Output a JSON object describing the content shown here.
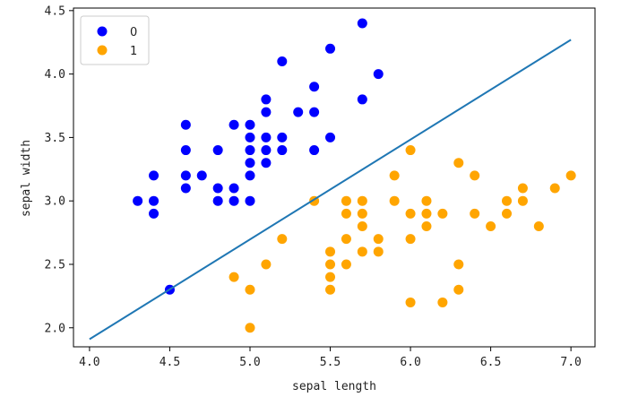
{
  "chart_data": {
    "type": "scatter",
    "xlabel": "sepal length",
    "ylabel": "sepal width",
    "xlim": [
      3.9,
      7.15
    ],
    "ylim": [
      1.85,
      4.52
    ],
    "xticks": [
      4.0,
      4.5,
      5.0,
      5.5,
      6.0,
      6.5,
      7.0
    ],
    "yticks": [
      2.0,
      2.5,
      3.0,
      3.5,
      4.0,
      4.5
    ],
    "legend_position": "upper-left",
    "series": [
      {
        "name": "0",
        "color": "#0000ff",
        "points": [
          [
            5.7,
            4.4
          ],
          [
            5.5,
            4.2
          ],
          [
            5.2,
            4.1
          ],
          [
            5.8,
            4.0
          ],
          [
            5.4,
            3.9
          ],
          [
            5.1,
            3.8
          ],
          [
            5.7,
            3.8
          ],
          [
            5.1,
            3.7
          ],
          [
            5.3,
            3.7
          ],
          [
            5.4,
            3.7
          ],
          [
            4.6,
            3.6
          ],
          [
            4.9,
            3.6
          ],
          [
            5.0,
            3.6
          ],
          [
            5.0,
            3.5
          ],
          [
            5.1,
            3.5
          ],
          [
            5.2,
            3.5
          ],
          [
            5.5,
            3.5
          ],
          [
            4.6,
            3.4
          ],
          [
            4.8,
            3.4
          ],
          [
            5.0,
            3.4
          ],
          [
            5.1,
            3.4
          ],
          [
            5.2,
            3.4
          ],
          [
            5.4,
            3.4
          ],
          [
            5.0,
            3.3
          ],
          [
            5.1,
            3.3
          ],
          [
            4.4,
            3.2
          ],
          [
            4.6,
            3.2
          ],
          [
            4.7,
            3.2
          ],
          [
            5.0,
            3.2
          ],
          [
            4.6,
            3.1
          ],
          [
            4.8,
            3.1
          ],
          [
            4.9,
            3.1
          ],
          [
            4.3,
            3.0
          ],
          [
            4.4,
            3.0
          ],
          [
            4.8,
            3.0
          ],
          [
            4.9,
            3.0
          ],
          [
            5.0,
            3.0
          ],
          [
            4.4,
            2.9
          ],
          [
            4.5,
            2.3
          ]
        ]
      },
      {
        "name": "1",
        "color": "#ffa500",
        "points": [
          [
            6.0,
            3.4
          ],
          [
            6.3,
            3.3
          ],
          [
            5.9,
            3.2
          ],
          [
            6.4,
            3.2
          ],
          [
            7.0,
            3.2
          ],
          [
            6.7,
            3.1
          ],
          [
            6.9,
            3.1
          ],
          [
            5.4,
            3.0
          ],
          [
            5.6,
            3.0
          ],
          [
            5.7,
            3.0
          ],
          [
            5.9,
            3.0
          ],
          [
            6.1,
            3.0
          ],
          [
            6.6,
            3.0
          ],
          [
            6.7,
            3.0
          ],
          [
            5.6,
            2.9
          ],
          [
            5.7,
            2.9
          ],
          [
            6.0,
            2.9
          ],
          [
            6.1,
            2.9
          ],
          [
            6.2,
            2.9
          ],
          [
            6.4,
            2.9
          ],
          [
            6.6,
            2.9
          ],
          [
            5.7,
            2.8
          ],
          [
            6.1,
            2.8
          ],
          [
            6.5,
            2.8
          ],
          [
            6.8,
            2.8
          ],
          [
            5.2,
            2.7
          ],
          [
            5.6,
            2.7
          ],
          [
            5.8,
            2.7
          ],
          [
            6.0,
            2.7
          ],
          [
            5.5,
            2.6
          ],
          [
            5.7,
            2.6
          ],
          [
            5.8,
            2.6
          ],
          [
            5.1,
            2.5
          ],
          [
            5.5,
            2.5
          ],
          [
            5.6,
            2.5
          ],
          [
            6.3,
            2.5
          ],
          [
            4.9,
            2.4
          ],
          [
            5.5,
            2.4
          ],
          [
            5.0,
            2.3
          ],
          [
            5.5,
            2.3
          ],
          [
            6.3,
            2.3
          ],
          [
            6.0,
            2.2
          ],
          [
            6.2,
            2.2
          ],
          [
            5.0,
            2.0
          ]
        ]
      }
    ],
    "decision_line": {
      "color": "#1f77b4",
      "x": [
        4.0,
        7.0
      ],
      "y": [
        1.91,
        4.27
      ]
    }
  }
}
